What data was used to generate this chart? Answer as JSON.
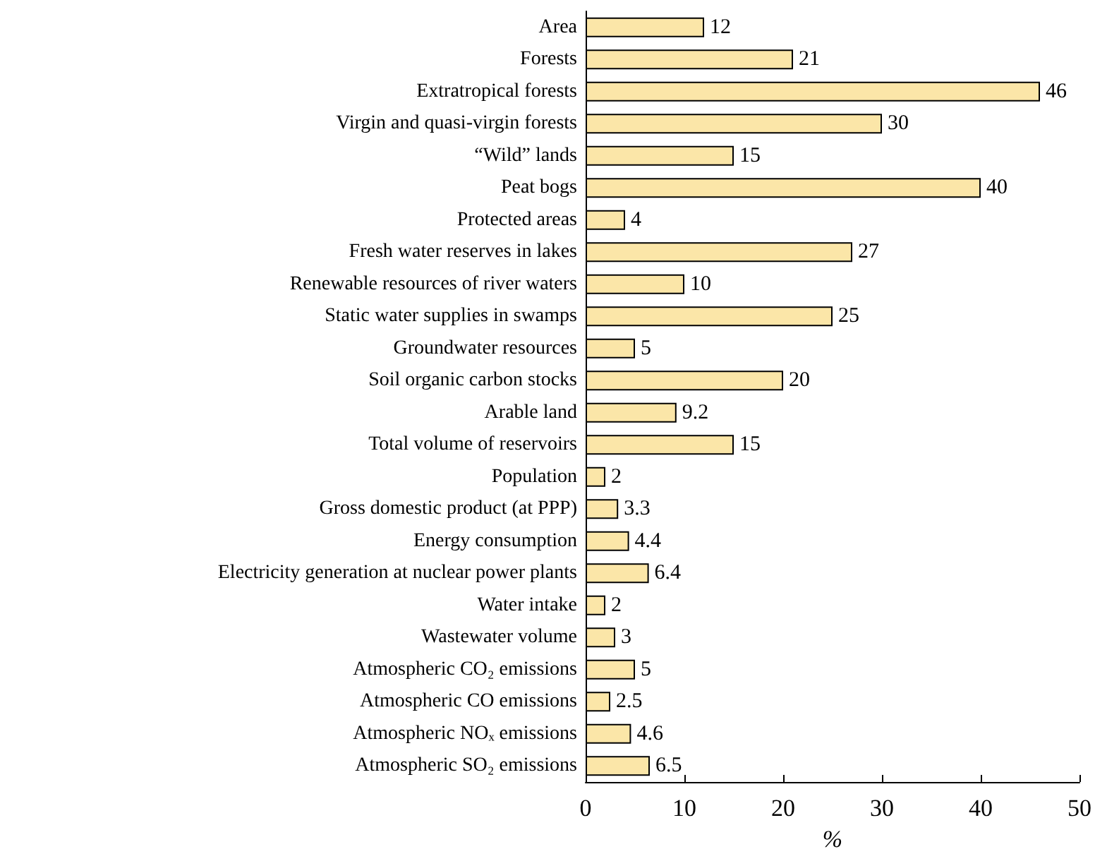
{
  "chart_data": {
    "type": "bar",
    "orientation": "horizontal",
    "xlabel": "%",
    "categories": [
      "Area",
      "Forests",
      "Extratropical forests",
      "Virgin and quasi-virgin forests",
      "“Wild” lands",
      "Peat bogs",
      "Protected areas",
      "Fresh water reserves in lakes",
      "Renewable resources of river waters",
      "Static water supplies in swamps",
      "Groundwater resources",
      "Soil organic carbon stocks",
      "Arable land",
      "Total volume of reservoirs",
      "Population",
      "Gross domestic product (at PPP)",
      "Energy consumption",
      "Electricity generation at nuclear power plants",
      "Water intake",
      "Wastewater volume",
      "Atmospheric CO₂ emissions",
      "Atmospheric CO emissions",
      "Atmospheric NOₓ emissions",
      "Atmospheric SO₂ emissions"
    ],
    "values": [
      12,
      21,
      46,
      30,
      15,
      40,
      4,
      27,
      10,
      25,
      5,
      20,
      9.2,
      15,
      2,
      3.3,
      4.4,
      6.4,
      2,
      3,
      5,
      2.5,
      4.6,
      6.5
    ],
    "color": "#fbe6a8",
    "xlim": [
      0,
      50
    ],
    "xticks": [
      0,
      10,
      20,
      30,
      40,
      50
    ],
    "data_labels": true
  }
}
